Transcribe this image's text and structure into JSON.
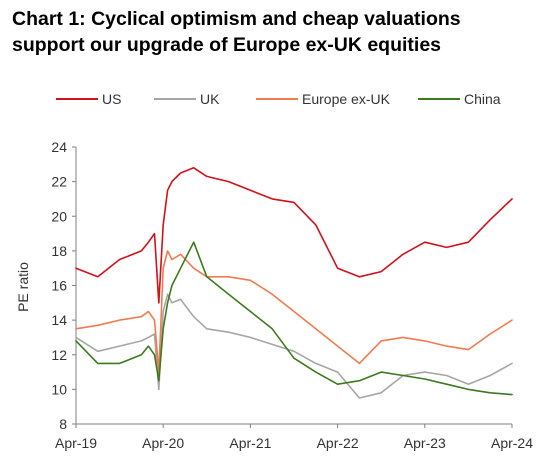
{
  "chart_data": {
    "type": "line",
    "title_line1": "Chart 1: Cyclical optimism and cheap valuations",
    "title_line2": "support our upgrade of Europe ex-UK equities",
    "ylabel": "PE ratio",
    "xlabel": "",
    "ylim": [
      8,
      24
    ],
    "yticks": [
      8,
      10,
      12,
      14,
      16,
      18,
      20,
      22,
      24
    ],
    "xticks": [
      "Apr-19",
      "Apr-20",
      "Apr-21",
      "Apr-22",
      "Apr-23",
      "Apr-24"
    ],
    "grid": false,
    "legend_position": "top",
    "x": [
      0,
      0.25,
      0.5,
      0.75,
      0.83,
      0.9,
      0.95,
      1.0,
      1.05,
      1.1,
      1.2,
      1.35,
      1.5,
      1.75,
      2.0,
      2.25,
      2.5,
      2.75,
      3.0,
      3.25,
      3.5,
      3.75,
      4.0,
      4.25,
      4.5,
      4.75,
      5.0
    ],
    "series": [
      {
        "name": "US",
        "color": "#d0121b",
        "values": [
          17.0,
          16.5,
          17.5,
          18.0,
          18.5,
          19.0,
          15.0,
          19.5,
          21.5,
          22.0,
          22.5,
          22.8,
          22.3,
          22.0,
          21.5,
          21.0,
          20.8,
          19.5,
          17.0,
          16.5,
          16.8,
          17.8,
          18.5,
          18.2,
          18.5,
          19.8,
          21.0
        ]
      },
      {
        "name": "UK",
        "color": "#a6a6a6",
        "values": [
          13.0,
          12.2,
          12.5,
          12.8,
          13.0,
          13.2,
          10.0,
          14.5,
          15.5,
          15.0,
          15.2,
          14.2,
          13.5,
          13.3,
          13.0,
          12.6,
          12.2,
          11.5,
          11.0,
          9.5,
          9.8,
          10.8,
          11.0,
          10.8,
          10.3,
          10.8,
          11.5
        ]
      },
      {
        "name": "Europe ex-UK",
        "color": "#ee7c51",
        "values": [
          13.5,
          13.7,
          14.0,
          14.2,
          14.5,
          14.0,
          11.0,
          17.0,
          18.0,
          17.5,
          17.8,
          17.0,
          16.5,
          16.5,
          16.3,
          15.5,
          14.5,
          13.5,
          12.5,
          11.5,
          12.8,
          13.0,
          12.8,
          12.5,
          12.3,
          13.2,
          14.0
        ]
      },
      {
        "name": "China",
        "color": "#3d7a1f",
        "values": [
          12.8,
          11.5,
          11.5,
          12.0,
          12.5,
          12.0,
          10.5,
          13.5,
          15.0,
          16.0,
          17.0,
          18.5,
          16.5,
          15.5,
          14.5,
          13.5,
          11.8,
          11.0,
          10.3,
          10.5,
          11.0,
          10.8,
          10.6,
          10.3,
          10.0,
          9.8,
          9.7
        ]
      }
    ]
  }
}
